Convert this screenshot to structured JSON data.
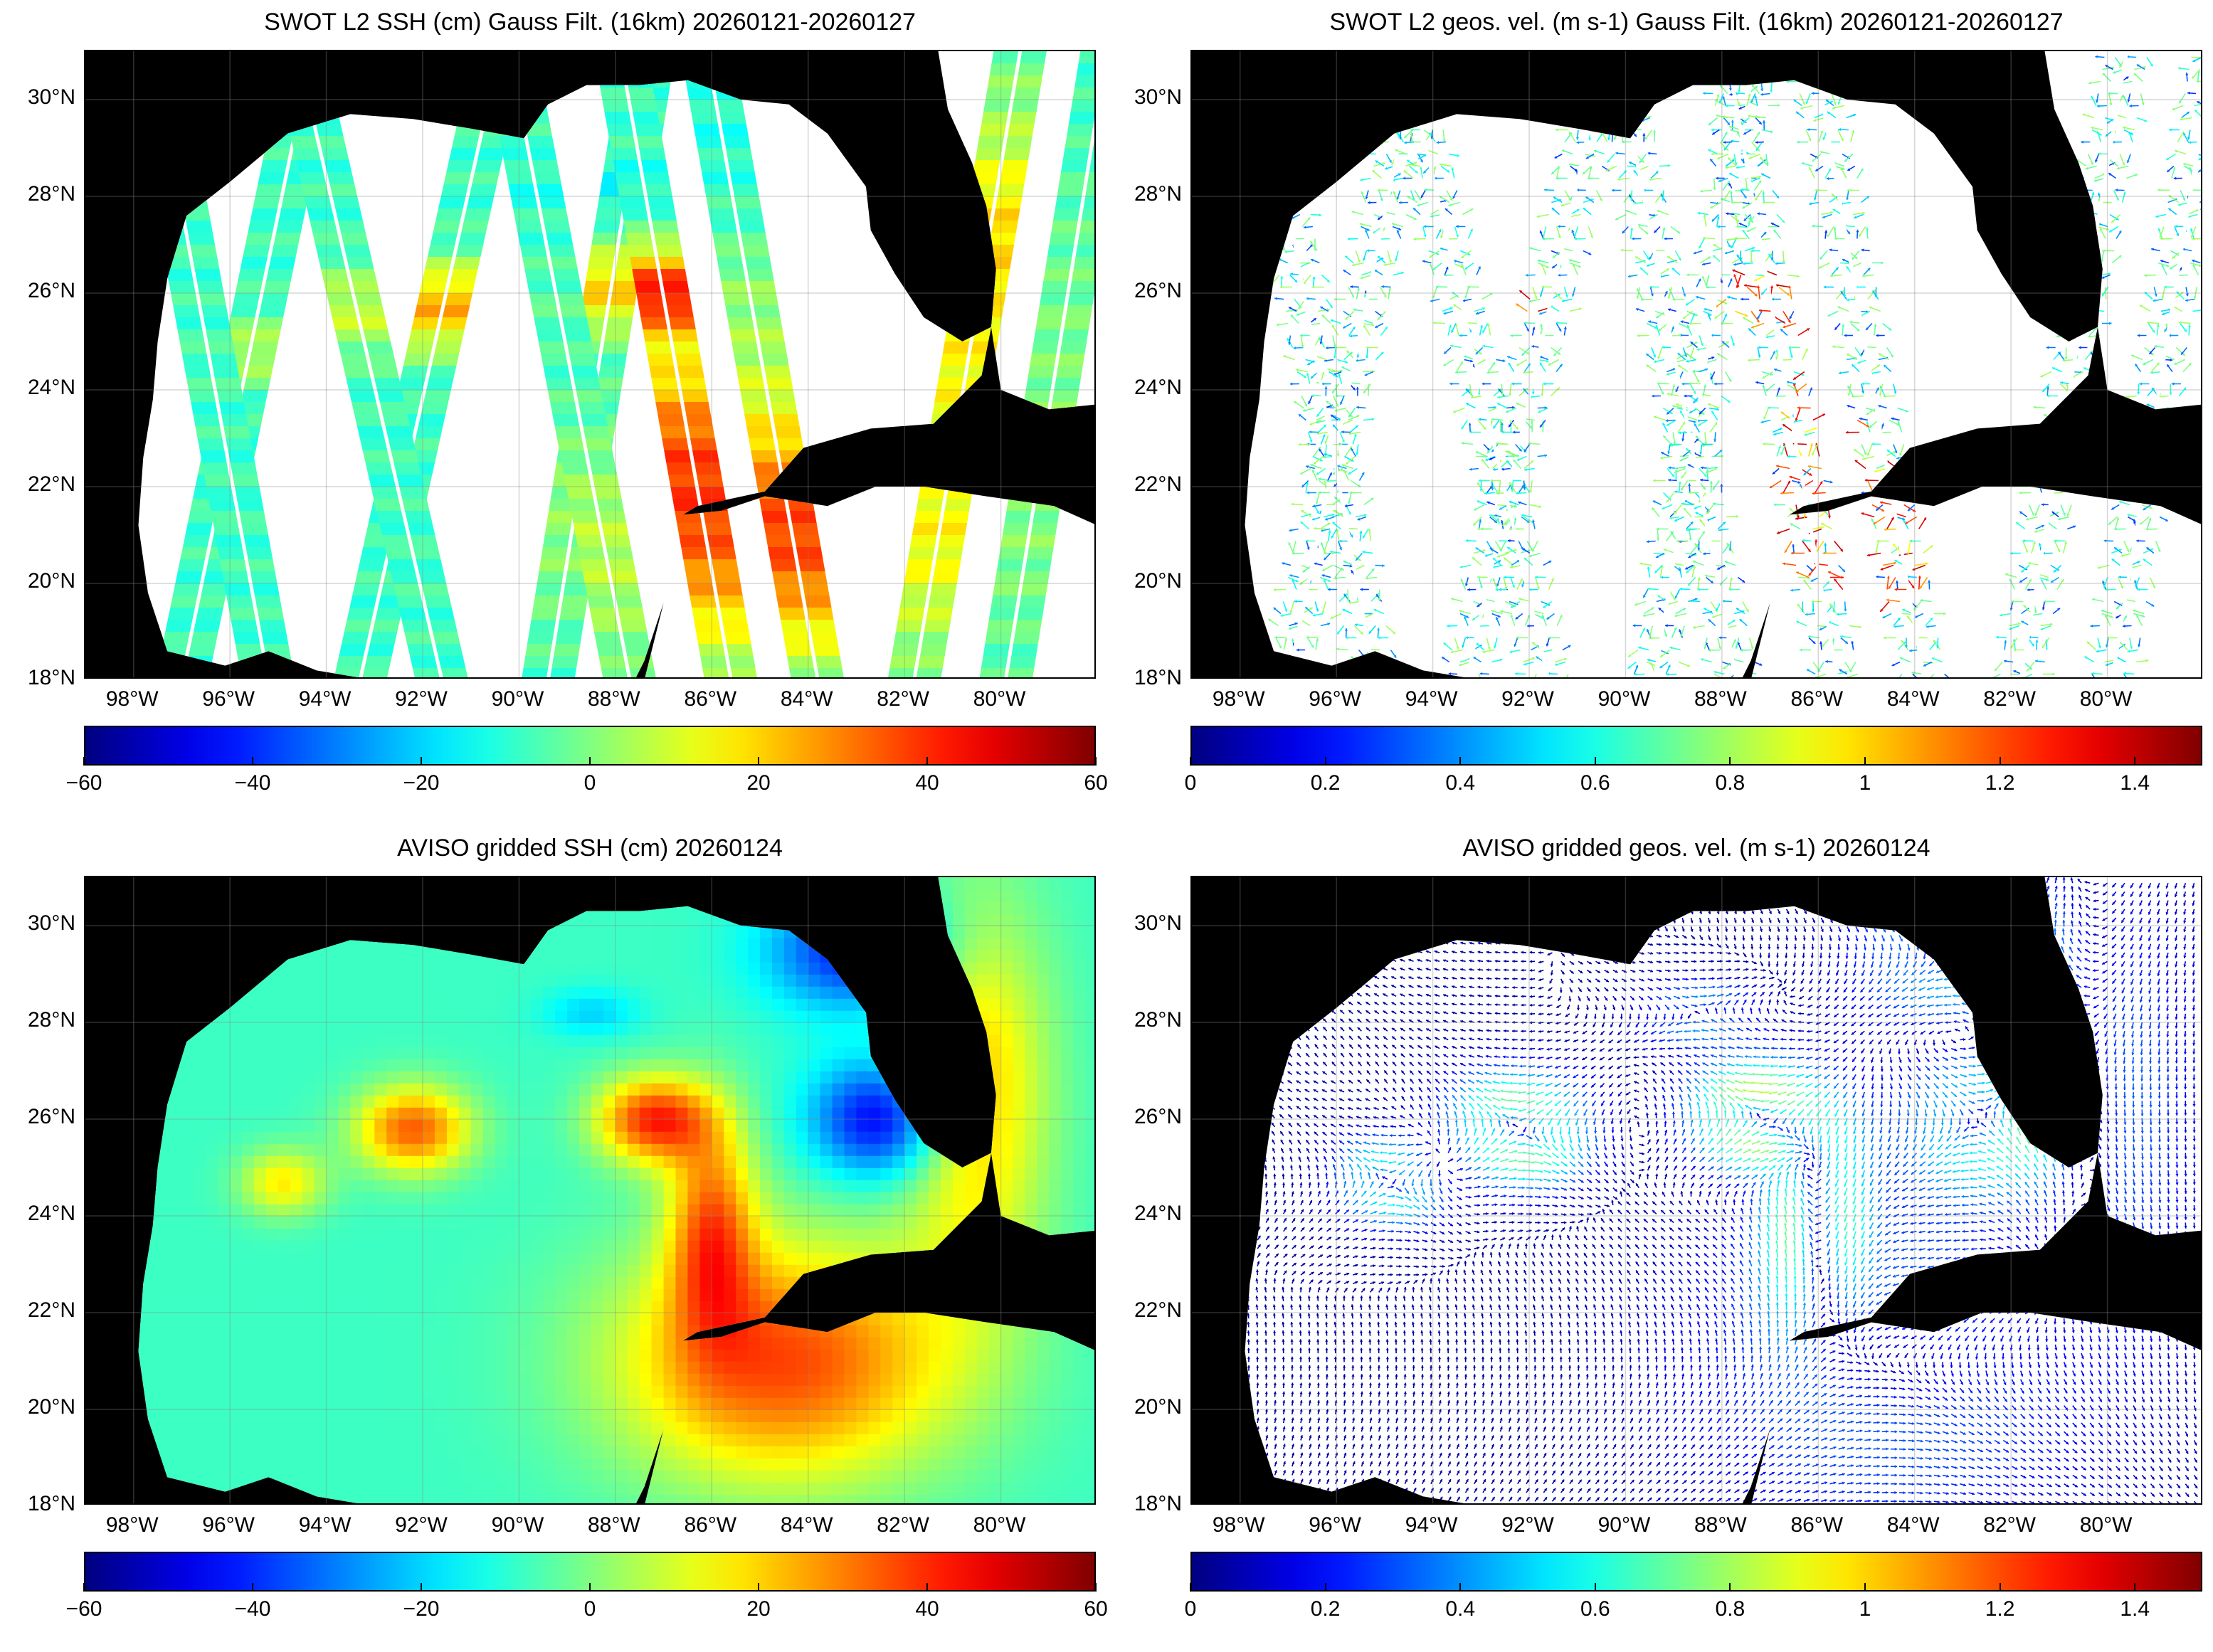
{
  "panels": [
    {
      "id": "p1",
      "title": "SWOT L2 SSH (cm) Gauss Filt. (16km) 20260121-20260127",
      "kind": "ssh-swath",
      "colorbar": {
        "ticks": [
          "−60",
          "−40",
          "−20",
          "0",
          "20",
          "40",
          "60"
        ],
        "min": -60,
        "max": 60
      }
    },
    {
      "id": "p2",
      "title": "SWOT L2 geos. vel. (m s-1) Gauss Filt. (16km) 20260121-20260127",
      "kind": "vel-swath",
      "colorbar": {
        "ticks": [
          "0",
          "0.2",
          "0.4",
          "0.6",
          "0.8",
          "1",
          "1.2",
          "1.4"
        ],
        "min": 0,
        "max": 1.5
      }
    },
    {
      "id": "p3",
      "title": "AVISO gridded SSH (cm) 20260124",
      "kind": "ssh-grid",
      "colorbar": {
        "ticks": [
          "−60",
          "−40",
          "−20",
          "0",
          "20",
          "40",
          "60"
        ],
        "min": -60,
        "max": 60
      }
    },
    {
      "id": "p4",
      "title": "AVISO gridded geos. vel. (m s-1)  20260124",
      "kind": "vel-grid",
      "colorbar": {
        "ticks": [
          "0",
          "0.2",
          "0.4",
          "0.6",
          "0.8",
          "1",
          "1.2",
          "1.4"
        ],
        "min": 0,
        "max": 1.5
      }
    }
  ],
  "axes": {
    "lat_labels": [
      "30°N",
      "28°N",
      "26°N",
      "24°N",
      "22°N",
      "20°N",
      "18°N"
    ],
    "lat_values": [
      30,
      28,
      26,
      24,
      22,
      20,
      18
    ],
    "lon_labels": [
      "98°W",
      "96°W",
      "94°W",
      "92°W",
      "90°W",
      "88°W",
      "86°W",
      "84°W",
      "82°W",
      "80°W"
    ],
    "lon_values": [
      -98,
      -96,
      -94,
      -92,
      -90,
      -88,
      -86,
      -84,
      -82,
      -80
    ],
    "lat_range": [
      18,
      31
    ],
    "lon_range": [
      -99,
      -78
    ]
  },
  "colormap": "jet"
}
